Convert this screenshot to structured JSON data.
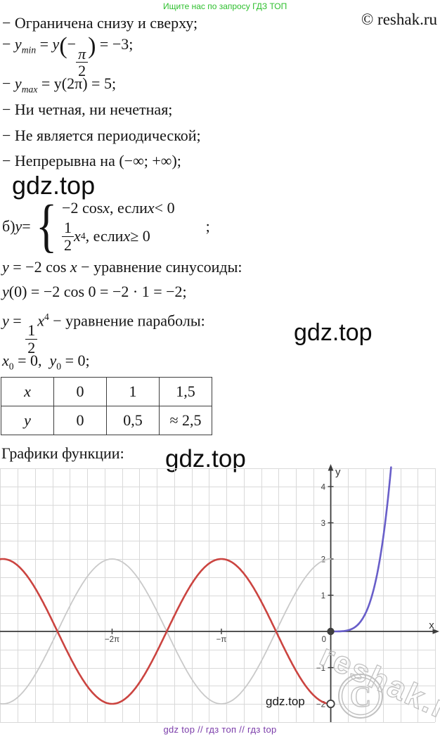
{
  "header": {
    "promo": "Ищите нас по запросу ГДЗ ТОП",
    "copyright": "© reshak.ru"
  },
  "properties": {
    "p1": "− Ограничена снизу и сверху;",
    "p2": {
      "dash": "− ",
      "v": "y",
      "sub": "min",
      "eq": " = ",
      "v2": "y",
      "lp": "(",
      "minus": "−",
      "num": "π",
      "den": "2",
      "rp": ")",
      "tail": " = −3;"
    },
    "p3": {
      "dash": "− ",
      "v": "y",
      "sub": "max",
      "tail": " = y(2π) = 5;"
    },
    "p4": "− Ни четная, ни нечетная;",
    "p5": "− Не является периодической;",
    "p6": "− Непрерывна на (−∞; +∞);"
  },
  "system": {
    "label": "б) ",
    "v": "y",
    "eq": " = ",
    "case1": {
      "coef": "−2 cos ",
      "x": "x",
      "mid": " , если ",
      "x2": "x",
      "ineq": " < 0"
    },
    "case2": {
      "num": "1",
      "den": "2",
      "x": "x",
      "exp": "4",
      "mid": ", если ",
      "x2": "x",
      "ineq": " ≥ 0"
    },
    "semicolon": ";"
  },
  "work": {
    "sin_line": {
      "v": "y",
      "mid": " = −2 cos ",
      "x": "x",
      "tail": " − уравнение синусоиды:"
    },
    "calc_line": {
      "v": "y",
      "tail": "(0) = −2 cos 0 = −2 · 1 = −2;"
    },
    "par_line": {
      "v": "y",
      "eq": " = ",
      "num": "1",
      "den": "2",
      "x": "x",
      "exp": "4",
      "tail": " − уравнение параболы:"
    },
    "vertex_line": {
      "x": "x",
      "xsub": "0",
      "a": " = 0,  ",
      "y": "y",
      "ysub": "0",
      "b": " = 0;"
    }
  },
  "table": {
    "rows": [
      {
        "h": "x",
        "c1": "0",
        "c2": "1",
        "c3": "1,5"
      },
      {
        "h": "y",
        "c1": "0",
        "c2": "0,5",
        "c3": "≈ 2,5"
      }
    ]
  },
  "graph_caption": "Графики функции:",
  "watermarks": {
    "wm1": "gdz.top",
    "wm2": "gdz.top",
    "wm3": "gdz.top",
    "wm_graph": "gdz.top",
    "reshak": "reshak.ru",
    "copyright_c": "C"
  },
  "footer": {
    "links": "gdz top  //  гдз топ  //  гдз top"
  },
  "chart_data": {
    "type": "line",
    "xlabel": "x",
    "ylabel": "y",
    "x_ticks": [
      {
        "label": "−2π",
        "value": -6.2832
      },
      {
        "label": "−π",
        "value": -3.1416
      }
    ],
    "origin_label": "0",
    "y_ticks": [
      {
        "label": "4",
        "value": 4
      },
      {
        "label": "3",
        "value": 3
      },
      {
        "label": "2",
        "value": 2
      },
      {
        "label": "1",
        "value": 1
      },
      {
        "label": "−1",
        "value": -1
      },
      {
        "label": "−2",
        "value": -2
      }
    ],
    "grid_step": 0.5,
    "x_range": [
      -9.55,
      3.0
    ],
    "y_range": [
      -2.55,
      4.55
    ],
    "series": [
      {
        "name": "y = 2cos x (вспомогательная)",
        "slug": "curve-gray-reference",
        "fn": "cos",
        "amp": 2,
        "domain": [
          -9.5,
          0
        ],
        "color": "#c9c9c9",
        "width": 1.8
      },
      {
        "name": "y = −2cos x, x < 0",
        "slug": "curve-red-cosine",
        "fn": "cos",
        "amp": -2,
        "domain": [
          -9.5,
          0
        ],
        "color": "#cb4440",
        "width": 2.6
      },
      {
        "name": "y = x⁴/2, x ≥ 0",
        "slug": "curve-blue-parabola",
        "fn": "quart",
        "amp": 0.5,
        "domain": [
          0,
          1.82
        ],
        "color": "#685ec9",
        "width": 2.6
      }
    ],
    "points": [
      {
        "x": 0,
        "y": 0,
        "style": "filled"
      },
      {
        "x": 0,
        "y": -2,
        "style": "open"
      }
    ],
    "colors": {
      "grid": "#d9d9d9",
      "axis": "#3c3c3c"
    }
  }
}
